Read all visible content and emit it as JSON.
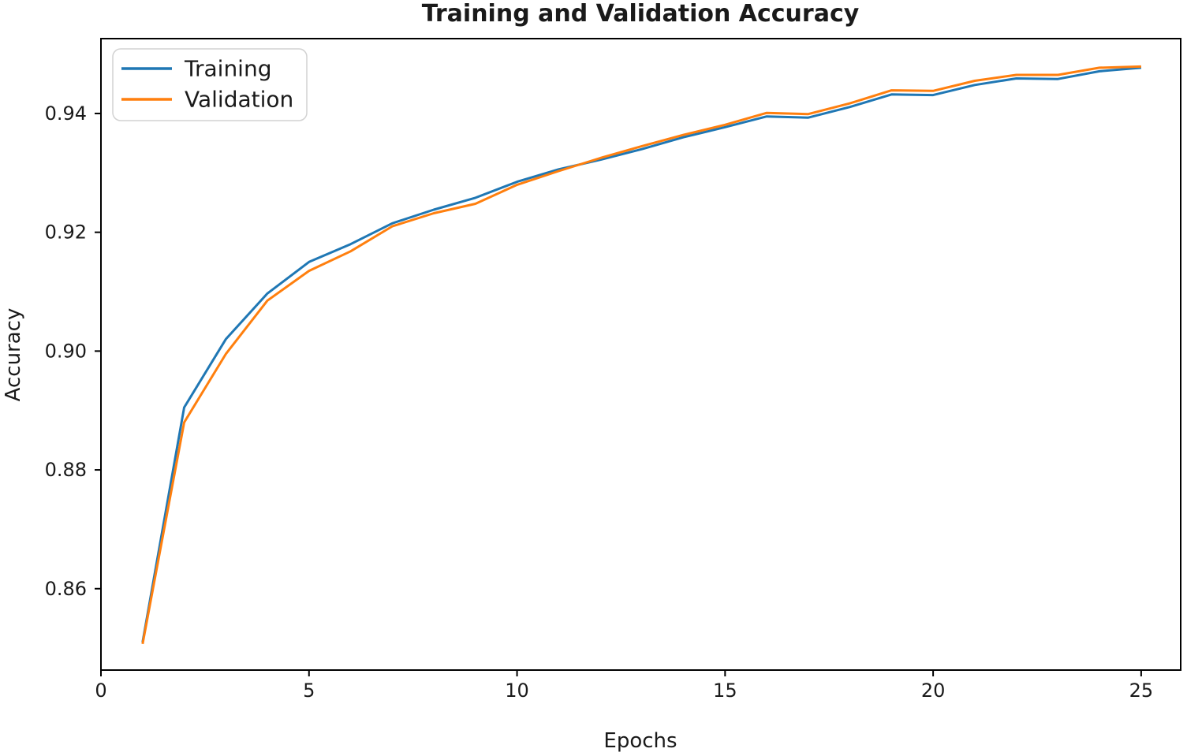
{
  "chart_data": {
    "type": "line",
    "title": "Training and Validation Accuracy",
    "xlabel": "Epochs",
    "ylabel": "Accuracy",
    "x": [
      1,
      2,
      3,
      4,
      5,
      6,
      7,
      8,
      9,
      10,
      11,
      12,
      13,
      14,
      15,
      16,
      17,
      18,
      19,
      20,
      21,
      22,
      23,
      24,
      25
    ],
    "series": [
      {
        "name": "Training",
        "color": "#1f77b4",
        "values": [
          0.851,
          0.8905,
          0.902,
          0.9097,
          0.915,
          0.918,
          0.9215,
          0.9238,
          0.9258,
          0.9285,
          0.9306,
          0.9322,
          0.934,
          0.936,
          0.9377,
          0.9395,
          0.9393,
          0.9411,
          0.9432,
          0.9431,
          0.9448,
          0.9459,
          0.9458,
          0.9471,
          0.9477
        ]
      },
      {
        "name": "Validation",
        "color": "#ff7f0e",
        "values": [
          0.8507,
          0.888,
          0.8995,
          0.9085,
          0.9135,
          0.9168,
          0.921,
          0.9232,
          0.9248,
          0.928,
          0.9303,
          0.9325,
          0.9345,
          0.9364,
          0.9381,
          0.9401,
          0.9399,
          0.9417,
          0.9439,
          0.9438,
          0.9455,
          0.9465,
          0.9465,
          0.9477,
          0.9479
        ]
      }
    ],
    "xticks": [
      "0",
      "5",
      "10",
      "15",
      "20",
      "25"
    ],
    "yticks": [
      "0.86",
      "0.88",
      "0.90",
      "0.92",
      "0.94"
    ],
    "xlim": [
      0,
      25.95
    ],
    "ylim": [
      0.8463,
      0.9526
    ],
    "grid": false,
    "legend_position": "upper left",
    "axis_color": "#000000",
    "text_color": "#1a1a1a",
    "legend_border_color": "#d2d2d2"
  }
}
